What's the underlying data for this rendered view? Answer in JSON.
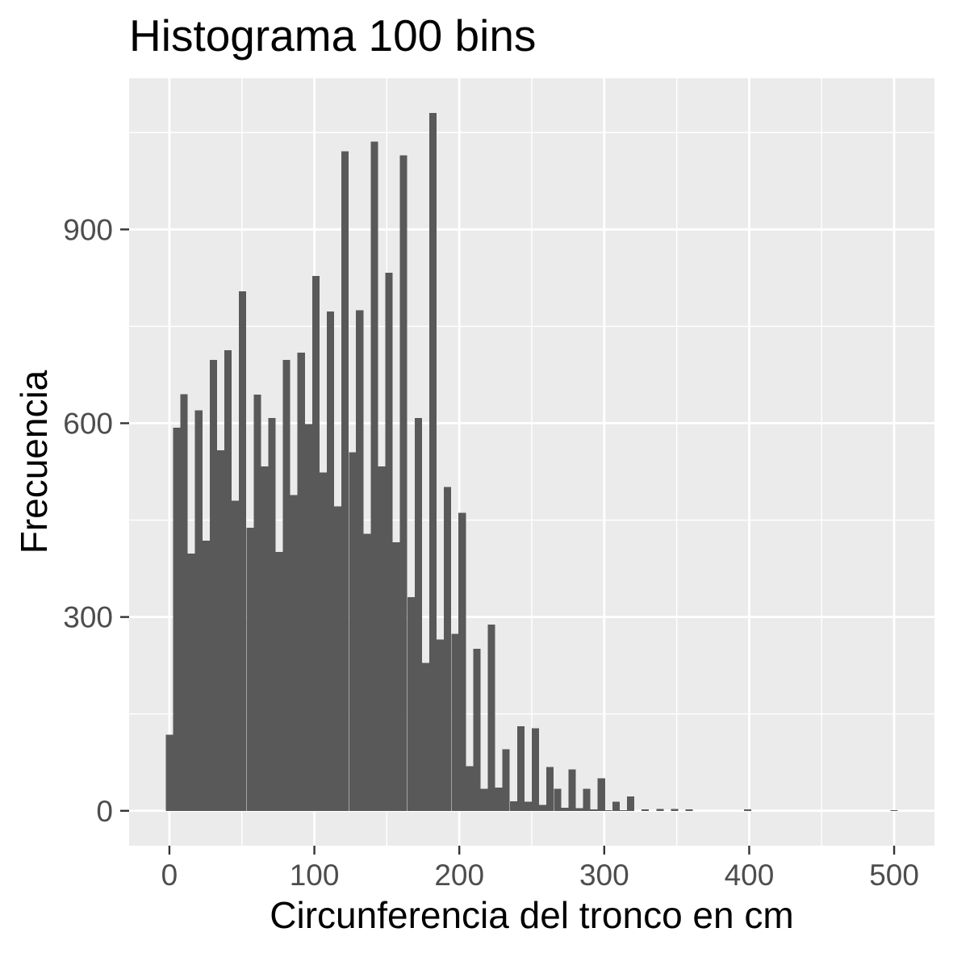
{
  "chart_data": {
    "type": "bar",
    "title": "Histograma 100 bins",
    "xlabel": "Circunferencia del tronco en cm",
    "ylabel": "Frecuencia",
    "x": [
      0,
      5.1,
      10.1,
      15.2,
      20.2,
      25.3,
      30.3,
      35.4,
      40.4,
      45.5,
      50.5,
      55.6,
      60.6,
      65.7,
      70.7,
      75.8,
      80.8,
      85.9,
      90.9,
      96,
      101,
      106.1,
      111.1,
      116.2,
      121.2,
      126.3,
      131.3,
      136.4,
      141.4,
      146.5,
      151.5,
      156.6,
      161.6,
      166.7,
      171.7,
      176.8,
      181.8,
      186.9,
      191.9,
      197,
      202,
      207.1,
      212.1,
      217.2,
      222.2,
      227.3,
      232.3,
      237.4,
      242.4,
      247.5,
      252.5,
      257.6,
      262.6,
      267.7,
      272.7,
      277.8,
      282.8,
      287.9,
      292.9,
      298,
      303,
      308.1,
      313.1,
      318.2,
      323.2,
      328.3,
      333.3,
      338.4,
      343.4,
      348.5,
      353.5,
      358.6,
      363.6,
      368.7,
      373.7,
      378.8,
      383.8,
      388.9,
      393.9,
      399,
      404,
      409.1,
      414.1,
      419.2,
      424.2,
      429.3,
      434.3,
      439.4,
      444.4,
      449.5,
      454.5,
      459.6,
      464.6,
      469.7,
      474.7,
      479.8,
      484.8,
      489.9,
      494.9,
      500
    ],
    "values": [
      118,
      593,
      645,
      398,
      620,
      418,
      698,
      558,
      713,
      480,
      804,
      438,
      644,
      533,
      608,
      401,
      698,
      489,
      709,
      599,
      828,
      524,
      773,
      471,
      1021,
      555,
      775,
      429,
      1036,
      533,
      833,
      416,
      1015,
      331,
      608,
      229,
      1080,
      265,
      501,
      274,
      461,
      69,
      251,
      34,
      288,
      36,
      95,
      15,
      131,
      14,
      128,
      9,
      68,
      34,
      5,
      64,
      4,
      34,
      2,
      50,
      1,
      14,
      1,
      22,
      0,
      2,
      0,
      3,
      0,
      3,
      0,
      2,
      0,
      0,
      0,
      0,
      0,
      0,
      0,
      2,
      0,
      0,
      0,
      0,
      0,
      0,
      0,
      0,
      0,
      0,
      0,
      0,
      0,
      0,
      0,
      0,
      0,
      0,
      0,
      1
    ],
    "xlim": [
      -27.8,
      527.8
    ],
    "ylim": [
      -54,
      1134
    ],
    "xticks": [
      0,
      100,
      200,
      300,
      400,
      500
    ],
    "yticks": [
      0,
      300,
      600,
      900
    ],
    "grid": true,
    "colors": {
      "bar": "#595959",
      "panel": "#EBEBEB",
      "grid": "#FFFFFF",
      "tick": "#333333",
      "tick_text": "#4D4D4D",
      "text": "#000000"
    }
  }
}
